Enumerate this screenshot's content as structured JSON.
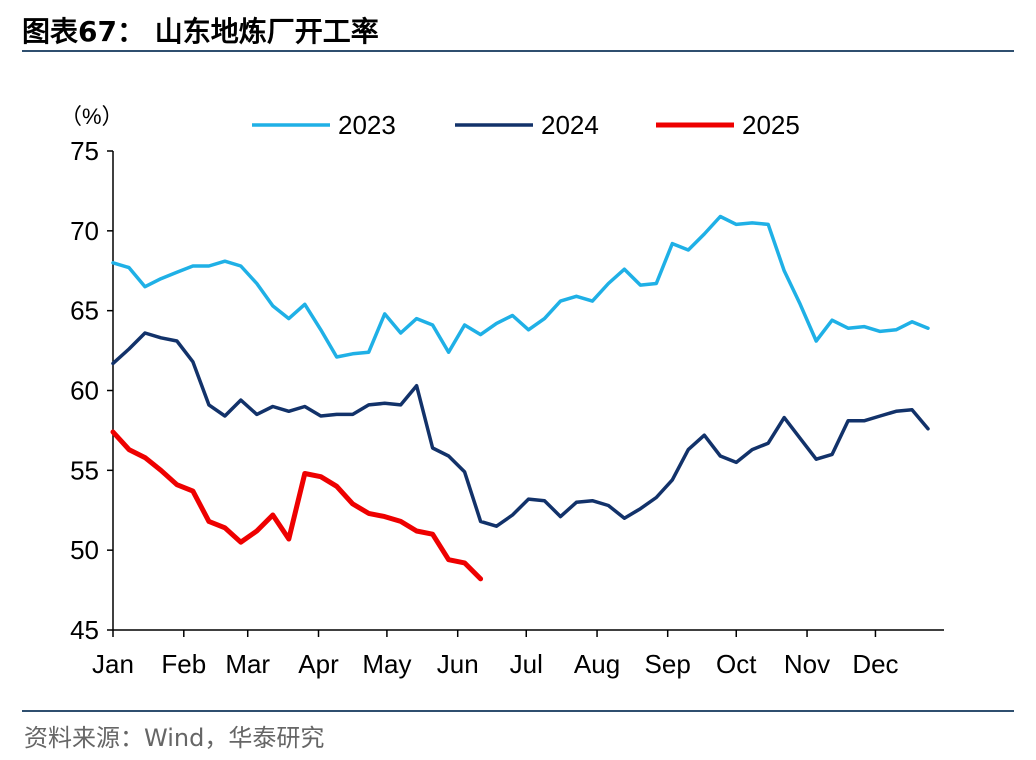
{
  "header": {
    "title": "图表67：  山东地炼厂开工率"
  },
  "footer": {
    "source": "资料来源：Wind，华泰研究"
  },
  "chart_data": {
    "type": "line",
    "title": "",
    "ylabel": "（%）",
    "xlabel": "",
    "ylim": [
      45,
      75
    ],
    "yticks": [
      45,
      50,
      55,
      60,
      65,
      70,
      75
    ],
    "xlim": [
      0,
      52
    ],
    "months": [
      "Jan",
      "Feb",
      "Mar",
      "Apr",
      "May",
      "Jun",
      "Jul",
      "Aug",
      "Sep",
      "Oct",
      "Nov",
      "Dec"
    ],
    "month_positions": [
      0,
      4.43,
      8.43,
      12.86,
      17.14,
      21.57,
      25.86,
      30.29,
      34.71,
      39.0,
      43.43,
      47.71
    ],
    "grid": false,
    "legend_position": "top",
    "series": [
      {
        "name": "2023",
        "color": "#1fb0e6",
        "x": [
          0,
          1,
          2,
          3,
          4,
          5,
          6,
          7,
          8,
          9,
          10,
          11,
          12,
          13,
          14,
          15,
          16,
          17,
          18,
          19,
          20,
          21,
          22,
          23,
          24,
          25,
          26,
          27,
          28,
          29,
          30,
          31,
          32,
          33,
          34,
          35,
          36,
          37,
          38,
          39,
          40,
          41,
          42,
          43,
          44,
          45,
          46,
          47,
          48,
          49,
          50,
          51
        ],
        "values": [
          68.0,
          67.7,
          66.5,
          67.0,
          67.4,
          67.8,
          67.8,
          68.1,
          67.8,
          66.7,
          65.3,
          64.5,
          65.4,
          63.8,
          62.1,
          62.3,
          62.4,
          64.8,
          63.6,
          64.5,
          64.1,
          62.4,
          64.1,
          63.5,
          64.2,
          64.7,
          63.8,
          64.5,
          65.6,
          65.9,
          65.6,
          66.7,
          67.6,
          66.6,
          66.7,
          69.2,
          68.8,
          69.8,
          70.9,
          70.4,
          70.5,
          70.4,
          67.5,
          65.4,
          63.1,
          64.4,
          63.9,
          64.0,
          63.7,
          63.8,
          64.3,
          63.9
        ]
      },
      {
        "name": "2024",
        "color": "#12326a",
        "x": [
          0,
          1,
          2,
          3,
          4,
          5,
          6,
          7,
          8,
          9,
          10,
          11,
          12,
          13,
          14,
          15,
          16,
          17,
          18,
          19,
          20,
          21,
          22,
          23,
          24,
          25,
          26,
          27,
          28,
          29,
          30,
          31,
          32,
          33,
          34,
          35,
          36,
          37,
          38,
          39,
          40,
          41,
          42,
          43,
          44,
          45,
          46,
          47,
          48,
          49,
          50,
          51
        ],
        "values": [
          61.7,
          62.6,
          63.6,
          63.3,
          63.1,
          61.8,
          59.1,
          58.4,
          59.4,
          58.5,
          59.0,
          58.7,
          59.0,
          58.4,
          58.5,
          58.5,
          59.1,
          59.2,
          59.1,
          60.3,
          56.4,
          55.9,
          54.9,
          51.8,
          51.5,
          52.2,
          53.2,
          53.1,
          52.1,
          53.0,
          53.1,
          52.8,
          52.0,
          52.6,
          53.3,
          54.4,
          56.3,
          57.2,
          55.9,
          55.5,
          56.3,
          56.7,
          58.3,
          57.0,
          55.7,
          56.0,
          58.1,
          58.1,
          58.4,
          58.7,
          58.8,
          57.6
        ]
      },
      {
        "name": "2025",
        "color": "#ee0000",
        "x": [
          0,
          1,
          2,
          3,
          4,
          5,
          6,
          7,
          8,
          9,
          10,
          11,
          12,
          13,
          14,
          15,
          16,
          17,
          18,
          19,
          20,
          21,
          22,
          23
        ],
        "values": [
          57.4,
          56.3,
          55.8,
          55.0,
          54.1,
          53.7,
          51.8,
          51.4,
          50.5,
          51.2,
          52.2,
          50.7,
          54.8,
          54.6,
          54.0,
          52.9,
          52.3,
          52.1,
          51.8,
          51.2,
          51.0,
          49.4,
          49.2,
          48.2
        ]
      }
    ]
  }
}
